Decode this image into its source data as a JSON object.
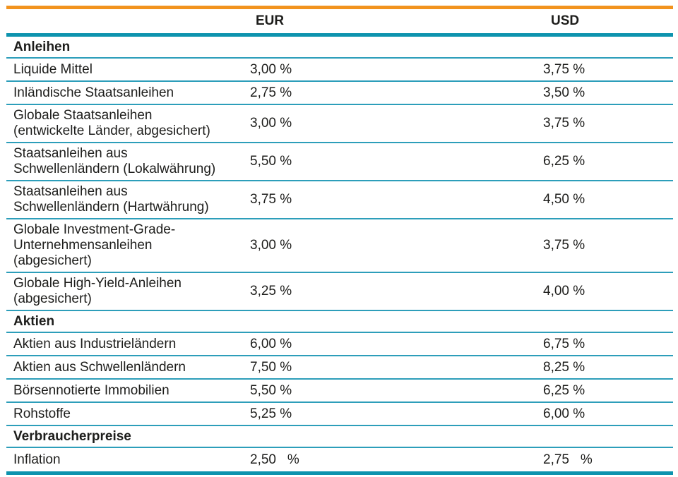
{
  "table": {
    "header": {
      "eur": "EUR",
      "usd": "USD"
    },
    "sections": [
      {
        "title": "Anleihen",
        "rows": [
          {
            "label": "Liquide Mittel",
            "eur": "3,00 %",
            "usd": "3,75 %"
          },
          {
            "label": "Inländische Staatsanleihen",
            "eur": "2,75 %",
            "usd": "3,50 %"
          },
          {
            "label": "Globale Staatsanleihen\n(entwickelte Länder, abgesichert)",
            "eur": "3,00 %",
            "usd": "3,75 %"
          },
          {
            "label": "Staatsanleihen aus\nSchwellenländern (Lokalwährung)",
            "eur": "5,50 %",
            "usd": "6,25 %"
          },
          {
            "label": "Staatsanleihen aus\nSchwellenländern (Hartwährung)",
            "eur": "3,75 %",
            "usd": "4,50 %"
          },
          {
            "label": "Globale Investment-Grade-\nUnternehmensanleihen\n(abgesichert)",
            "eur": "3,00 %",
            "usd": "3,75 %"
          },
          {
            "label": "Globale High-Yield-Anleihen\n(abgesichert)",
            "eur": "3,25 %",
            "usd": "4,00 %"
          }
        ]
      },
      {
        "title": "Aktien",
        "rows": [
          {
            "label": "Aktien aus Industrieländern",
            "eur": "6,00 %",
            "usd": "6,75 %"
          },
          {
            "label": "Aktien aus Schwellenländern",
            "eur": "7,50 %",
            "usd": "8,25 %"
          },
          {
            "label": "Börsennotierte Immobilien",
            "eur": "5,50 %",
            "usd": "6,25 %"
          },
          {
            "label": "Rohstoffe",
            "eur": "5,25 %",
            "usd": "6,00 %"
          }
        ]
      },
      {
        "title": "Verbraucherpreise",
        "rows": [
          {
            "label": "Inflation",
            "eur": "2,50   %",
            "usd": "2,75   %"
          }
        ]
      }
    ]
  },
  "chart_data": {
    "type": "table",
    "columns": [
      "",
      "EUR",
      "USD"
    ],
    "rows": [
      [
        "Anleihen",
        "",
        ""
      ],
      [
        "Liquide Mittel",
        "3,00 %",
        "3,75 %"
      ],
      [
        "Inländische Staatsanleihen",
        "2,75 %",
        "3,50 %"
      ],
      [
        "Globale Staatsanleihen (entwickelte Länder, abgesichert)",
        "3,00 %",
        "3,75 %"
      ],
      [
        "Staatsanleihen aus Schwellenländern (Lokalwährung)",
        "5,50 %",
        "6,25 %"
      ],
      [
        "Staatsanleihen aus Schwellenländern (Hartwährung)",
        "3,75 %",
        "4,50 %"
      ],
      [
        "Globale Investment-Grade-Unternehmensanleihen (abgesichert)",
        "3,00 %",
        "3,75 %"
      ],
      [
        "Globale High-Yield-Anleihen (abgesichert)",
        "3,25 %",
        "4,00 %"
      ],
      [
        "Aktien",
        "",
        ""
      ],
      [
        "Aktien aus Industrieländern",
        "6,00 %",
        "6,75 %"
      ],
      [
        "Aktien aus Schwellenländern",
        "7,50 %",
        "8,25 %"
      ],
      [
        "Börsennotierte Immobilien",
        "5,50 %",
        "6,25 %"
      ],
      [
        "Rohstoffe",
        "5,25 %",
        "6,00 %"
      ],
      [
        "Verbraucherpreise",
        "",
        ""
      ],
      [
        "Inflation",
        "2,50 %",
        "2,75 %"
      ]
    ]
  },
  "colors": {
    "orange": "#F2931E",
    "teal": "#0D93AE",
    "thin_line": "#2D9EBA",
    "text": "#1D1D1B"
  }
}
